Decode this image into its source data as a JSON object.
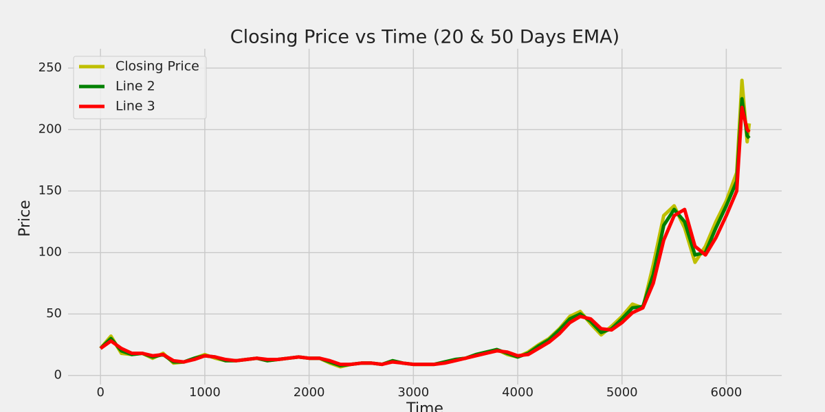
{
  "chart_data": {
    "type": "line",
    "title": "Closing Price vs Time (20 & 50 Days EMA)",
    "x_label": "Time",
    "y_label": "Price",
    "x": [
      0,
      100,
      200,
      300,
      400,
      500,
      600,
      700,
      800,
      900,
      1000,
      1100,
      1200,
      1300,
      1400,
      1500,
      1600,
      1700,
      1800,
      1900,
      2000,
      2100,
      2200,
      2300,
      2400,
      2500,
      2600,
      2700,
      2800,
      2900,
      3000,
      3100,
      3200,
      3300,
      3400,
      3500,
      3600,
      3700,
      3800,
      3900,
      4000,
      4100,
      4200,
      4300,
      4400,
      4500,
      4600,
      4700,
      4800,
      4900,
      5000,
      5100,
      5200,
      5300,
      5400,
      5500,
      5600,
      5700,
      5800,
      5900,
      6000,
      6100,
      6150,
      6200,
      6220
    ],
    "series": [
      {
        "name": "Closing Price",
        "color": "#bfbf00",
        "values": [
          22,
          32,
          18,
          17,
          18,
          14,
          18,
          10,
          11,
          14,
          17,
          14,
          12,
          12,
          13,
          14,
          12,
          13,
          14,
          15,
          14,
          14,
          10,
          7,
          9,
          10,
          10,
          9,
          12,
          10,
          9,
          9,
          9,
          11,
          13,
          14,
          17,
          19,
          21,
          17,
          15,
          19,
          25,
          30,
          38,
          48,
          52,
          42,
          33,
          40,
          48,
          58,
          55,
          90,
          130,
          138,
          120,
          92,
          105,
          125,
          142,
          165,
          240,
          190,
          205
        ]
      },
      {
        "name": "Line 2",
        "color": "#008000",
        "values": [
          22,
          30,
          20,
          17,
          18,
          15,
          17,
          11,
          11,
          14,
          16,
          15,
          12,
          12,
          13,
          14,
          12,
          13,
          14,
          15,
          14,
          14,
          11,
          8,
          9,
          10,
          10,
          9,
          12,
          10,
          9,
          9,
          9,
          11,
          13,
          14,
          17,
          19,
          21,
          18,
          15,
          18,
          24,
          29,
          37,
          46,
          50,
          44,
          35,
          38,
          46,
          55,
          56,
          82,
          122,
          135,
          125,
          98,
          100,
          120,
          138,
          158,
          225,
          195,
          193
        ]
      },
      {
        "name": "Line 3",
        "color": "#ff0000",
        "values": [
          22,
          28,
          22,
          18,
          18,
          16,
          17,
          12,
          11,
          13,
          16,
          15,
          13,
          12,
          13,
          14,
          13,
          13,
          14,
          15,
          14,
          14,
          12,
          9,
          9,
          10,
          10,
          9,
          11,
          10,
          9,
          9,
          9,
          10,
          12,
          14,
          16,
          18,
          20,
          19,
          16,
          17,
          22,
          27,
          34,
          43,
          48,
          46,
          38,
          37,
          43,
          51,
          55,
          75,
          110,
          130,
          135,
          105,
          98,
          112,
          130,
          150,
          218,
          200,
          198
        ]
      }
    ],
    "xlim": [
      -311,
      6531
    ],
    "xticks": [
      0,
      1000,
      2000,
      3000,
      4000,
      5000,
      6000
    ],
    "ylim": [
      -7.4,
      265.7
    ],
    "yticks": [
      0,
      50,
      100,
      150,
      200,
      250
    ],
    "grid": true,
    "legend": "upper left"
  }
}
